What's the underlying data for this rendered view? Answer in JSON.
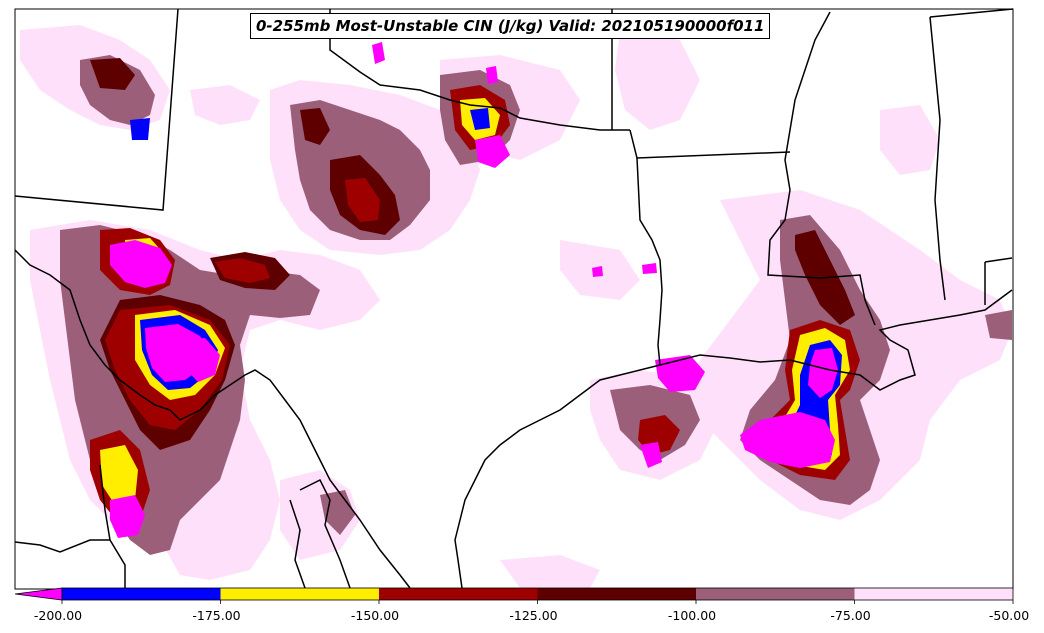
{
  "title": "0-255mb Most-Unstable CIN (J/kg) Valid: 202105190000f011",
  "colorbar": {
    "tick_labels": [
      "-200.00",
      "-175.00",
      "-150.00",
      "-125.00",
      "-100.00",
      "-75.00",
      "-50.00"
    ],
    "bins": [
      {
        "from": -200,
        "to": -175,
        "color": "#0000ff"
      },
      {
        "from": -175,
        "to": -150,
        "color": "#ffee00"
      },
      {
        "from": -150,
        "to": -125,
        "color": "#9e0000"
      },
      {
        "from": -125,
        "to": -100,
        "color": "#5e0000"
      },
      {
        "from": -100,
        "to": -75,
        "color": "#9b5f7a"
      },
      {
        "from": -75,
        "to": -50,
        "color": "#ffe0fb"
      }
    ],
    "under_color": "#ff00ff"
  },
  "field_colors": {
    "lt_200": "#ff00ff",
    "m175": "#0000ff",
    "m150": "#ffee00",
    "m125": "#9e0000",
    "m100": "#5e0000",
    "m75": "#9b5f7a",
    "m50": "#ffe0fb"
  }
}
